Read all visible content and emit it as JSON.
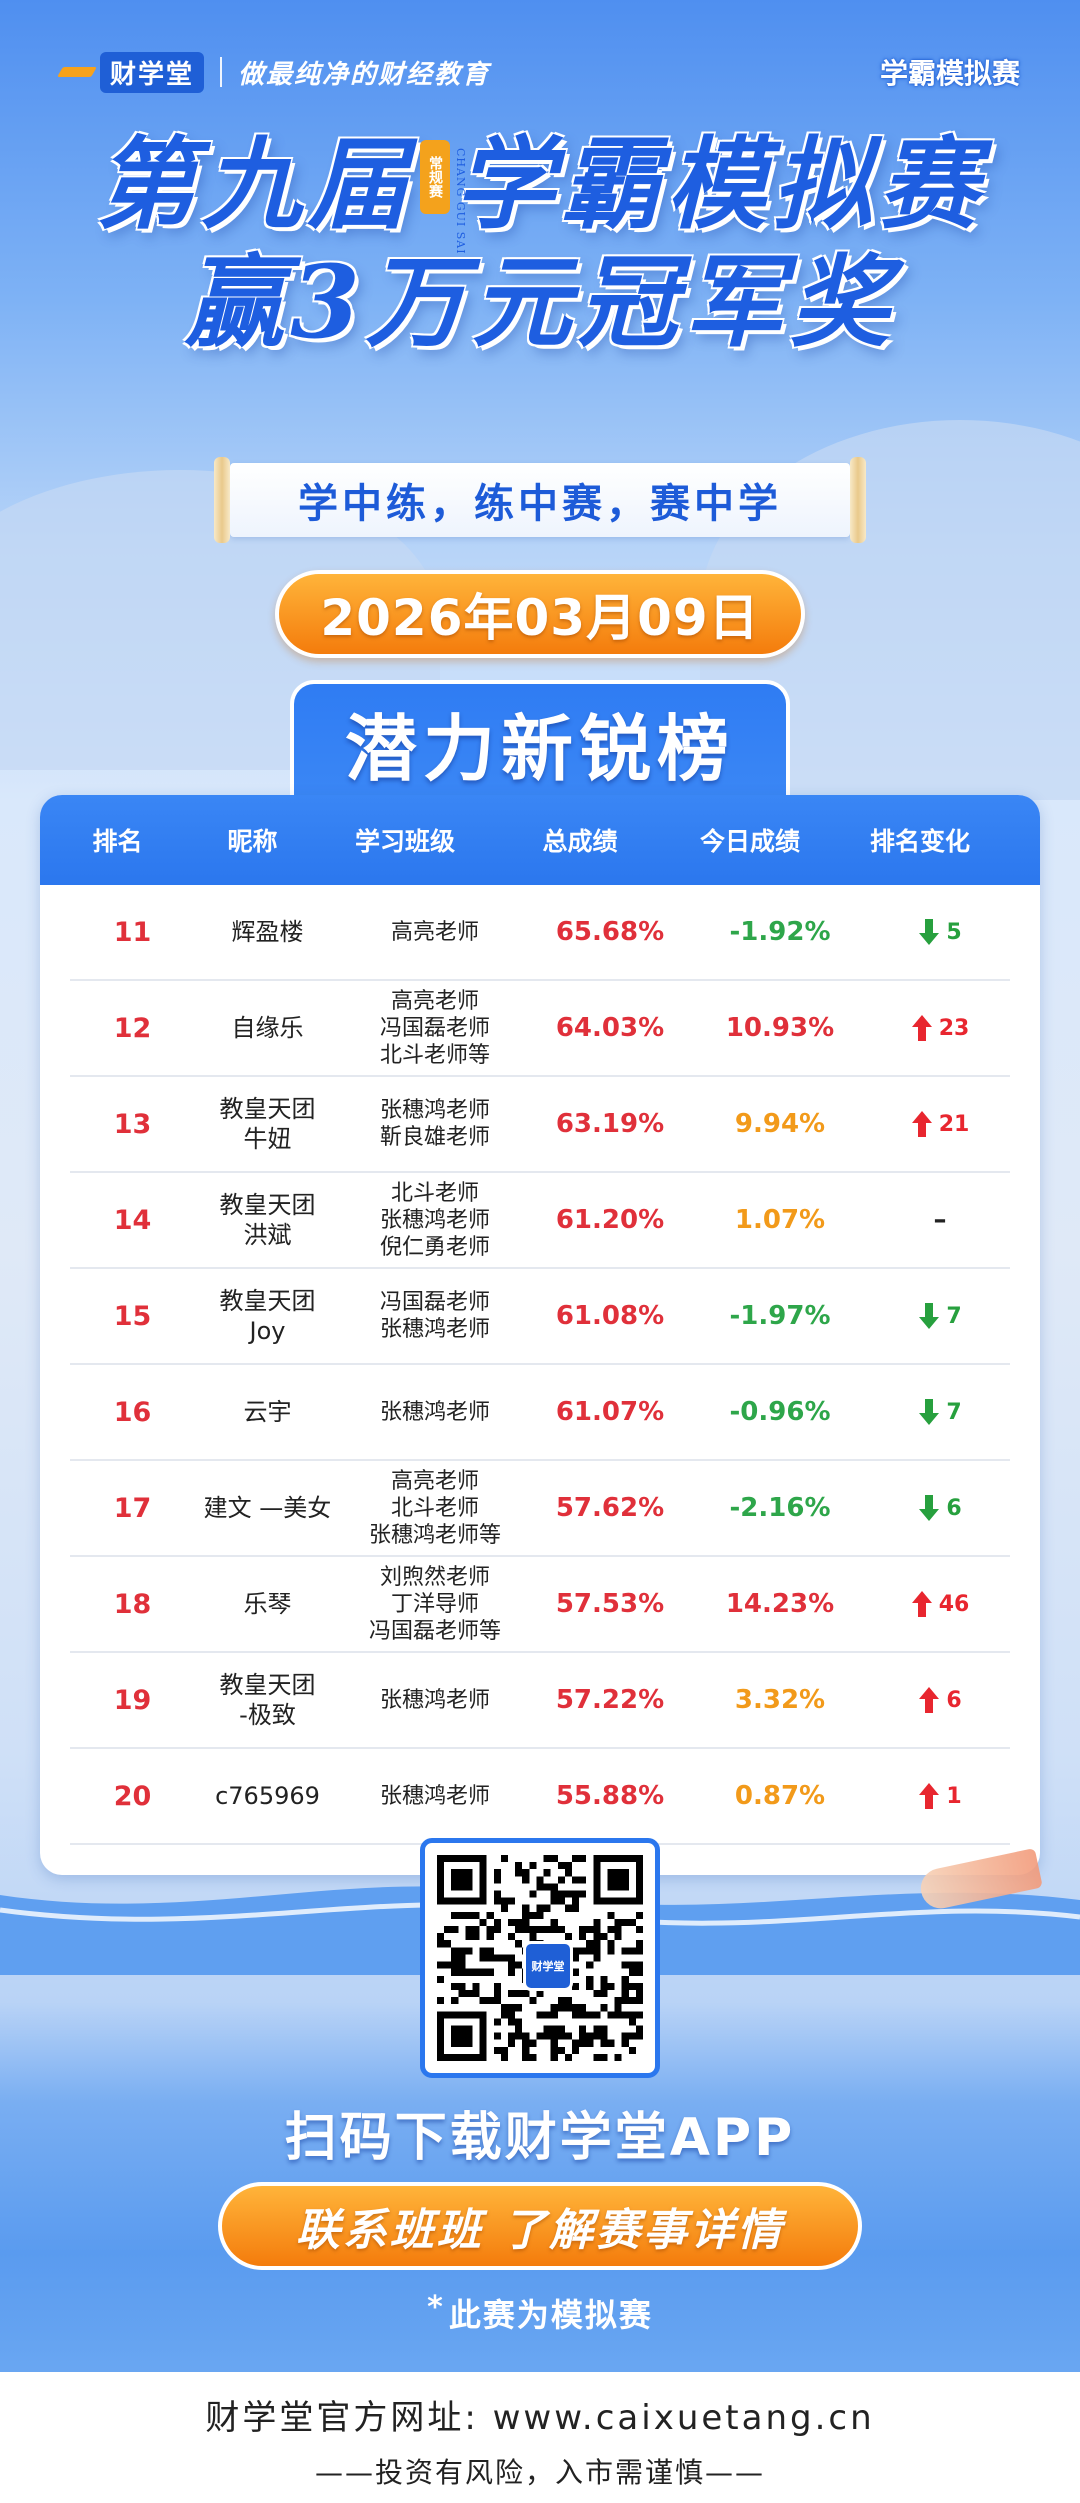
{
  "header": {
    "logo_text": "财学堂",
    "slogan": "做最纯净的财经教育",
    "corner_tag": "学霸模拟赛"
  },
  "title": {
    "line1": "第九届 学霸模拟赛",
    "line2": "赢3万元冠军奖",
    "seal": "常规赛",
    "seal_en": "CHANG GUI SAI"
  },
  "motto": "学中练，练中赛，赛中学",
  "date": "2026年03月09日",
  "list_title": "潜力新锐榜",
  "table": {
    "headers": [
      "排名",
      "昵称",
      "学习班级",
      "总成绩",
      "今日成绩",
      "排名变化"
    ],
    "rows": [
      {
        "rank": "11",
        "nick": "辉盈楼",
        "cls": "高亮老师",
        "total": "65.68%",
        "today": "-1.92%",
        "today_color": "#2ea64a",
        "dir": "down",
        "change": "5"
      },
      {
        "rank": "12",
        "nick": "自缘乐",
        "cls": "高亮老师\n冯国磊老师\n北斗老师等",
        "total": "64.03%",
        "today": "10.93%",
        "today_color": "#e0303a",
        "dir": "up",
        "change": "23"
      },
      {
        "rank": "13",
        "nick": "教皇天团\n牛妞",
        "cls": "张穗鸿老师\n靳良雄老师",
        "total": "63.19%",
        "today": "9.94%",
        "today_color": "#f29a1a",
        "dir": "up",
        "change": "21"
      },
      {
        "rank": "14",
        "nick": "教皇天团\n洪斌",
        "cls": "北斗老师\n张穗鸿老师\n倪仁勇老师",
        "total": "61.20%",
        "today": "1.07%",
        "today_color": "#f29a1a",
        "dir": "none",
        "change": "–"
      },
      {
        "rank": "15",
        "nick": "教皇天团\nJoy",
        "cls": "冯国磊老师\n张穗鸿老师",
        "total": "61.08%",
        "today": "-1.97%",
        "today_color": "#2ea64a",
        "dir": "down",
        "change": "7"
      },
      {
        "rank": "16",
        "nick": "云宇",
        "cls": "张穗鸿老师",
        "total": "61.07%",
        "today": "-0.96%",
        "today_color": "#2ea64a",
        "dir": "down",
        "change": "7"
      },
      {
        "rank": "17",
        "nick": "建文 —美女",
        "cls": "高亮老师\n北斗老师\n张穗鸿老师等",
        "total": "57.62%",
        "today": "-2.16%",
        "today_color": "#2ea64a",
        "dir": "down",
        "change": "6"
      },
      {
        "rank": "18",
        "nick": "乐琴",
        "cls": "刘煦然老师\n丁洋导师\n冯国磊老师等",
        "total": "57.53%",
        "today": "14.23%",
        "today_color": "#e0303a",
        "dir": "up",
        "change": "46"
      },
      {
        "rank": "19",
        "nick": "教皇天团\n-极致",
        "cls": "张穗鸿老师",
        "total": "57.22%",
        "today": "3.32%",
        "today_color": "#f29a1a",
        "dir": "up",
        "change": "6"
      },
      {
        "rank": "20",
        "nick": "c765969",
        "cls": "张穗鸿老师",
        "total": "55.88%",
        "today": "0.87%",
        "today_color": "#f29a1a",
        "dir": "up",
        "change": "1"
      }
    ]
  },
  "qr_badge": "财学堂",
  "scan_text": "扫码下载财学堂APP",
  "contact": "联系班班  了解赛事详情",
  "note": "此赛为模拟赛",
  "footer": {
    "site": "财学堂官方网址: www.caixuetang.cn",
    "risk": "——投资有风险，入市需谨慎——"
  }
}
